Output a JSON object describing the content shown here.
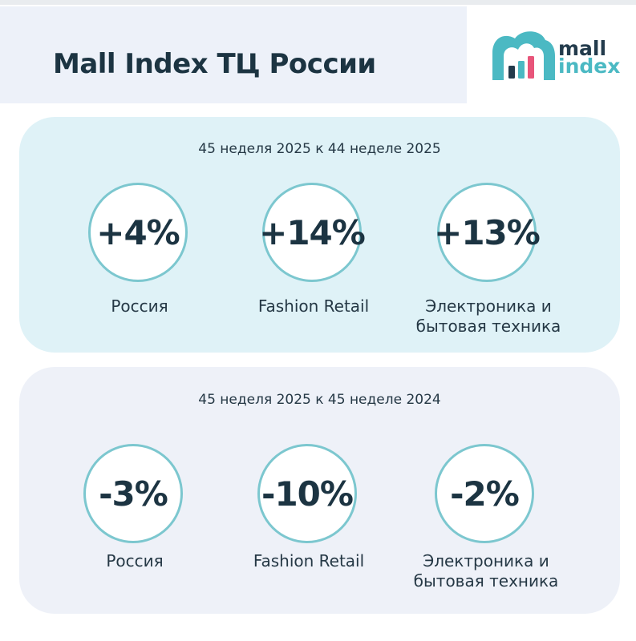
{
  "header": {
    "title": "Mall Index ТЦ России",
    "logo": {
      "line1": "mall",
      "line2": "index",
      "icon": "mall-index-logo-icon"
    }
  },
  "colors": {
    "header_bg": "#edf1f9",
    "panel_week_bg": "#dff2f7",
    "panel_year_bg": "#eef1f8",
    "circle_border": "#7cc7cf",
    "text_dark": "#1c3442",
    "logo_teal": "#4bb9c3"
  },
  "panels": [
    {
      "heading": "45 неделя 2025 к 44 неделе 2025",
      "stats": [
        {
          "value": "+4%",
          "label": "Россия"
        },
        {
          "value": "+14%",
          "label": "Fashion Retail"
        },
        {
          "value": "+13%",
          "label_line1": "Электроника и",
          "label_line2": "бытовая техника"
        }
      ]
    },
    {
      "heading": "45 неделя 2025 к 45 неделе 2024",
      "stats": [
        {
          "value": "-3%",
          "label": "Россия"
        },
        {
          "value": "-10%",
          "label": "Fashion Retail"
        },
        {
          "value": "-2%",
          "label_line1": "Электроника и",
          "label_line2": "бытовая техника"
        }
      ]
    }
  ]
}
